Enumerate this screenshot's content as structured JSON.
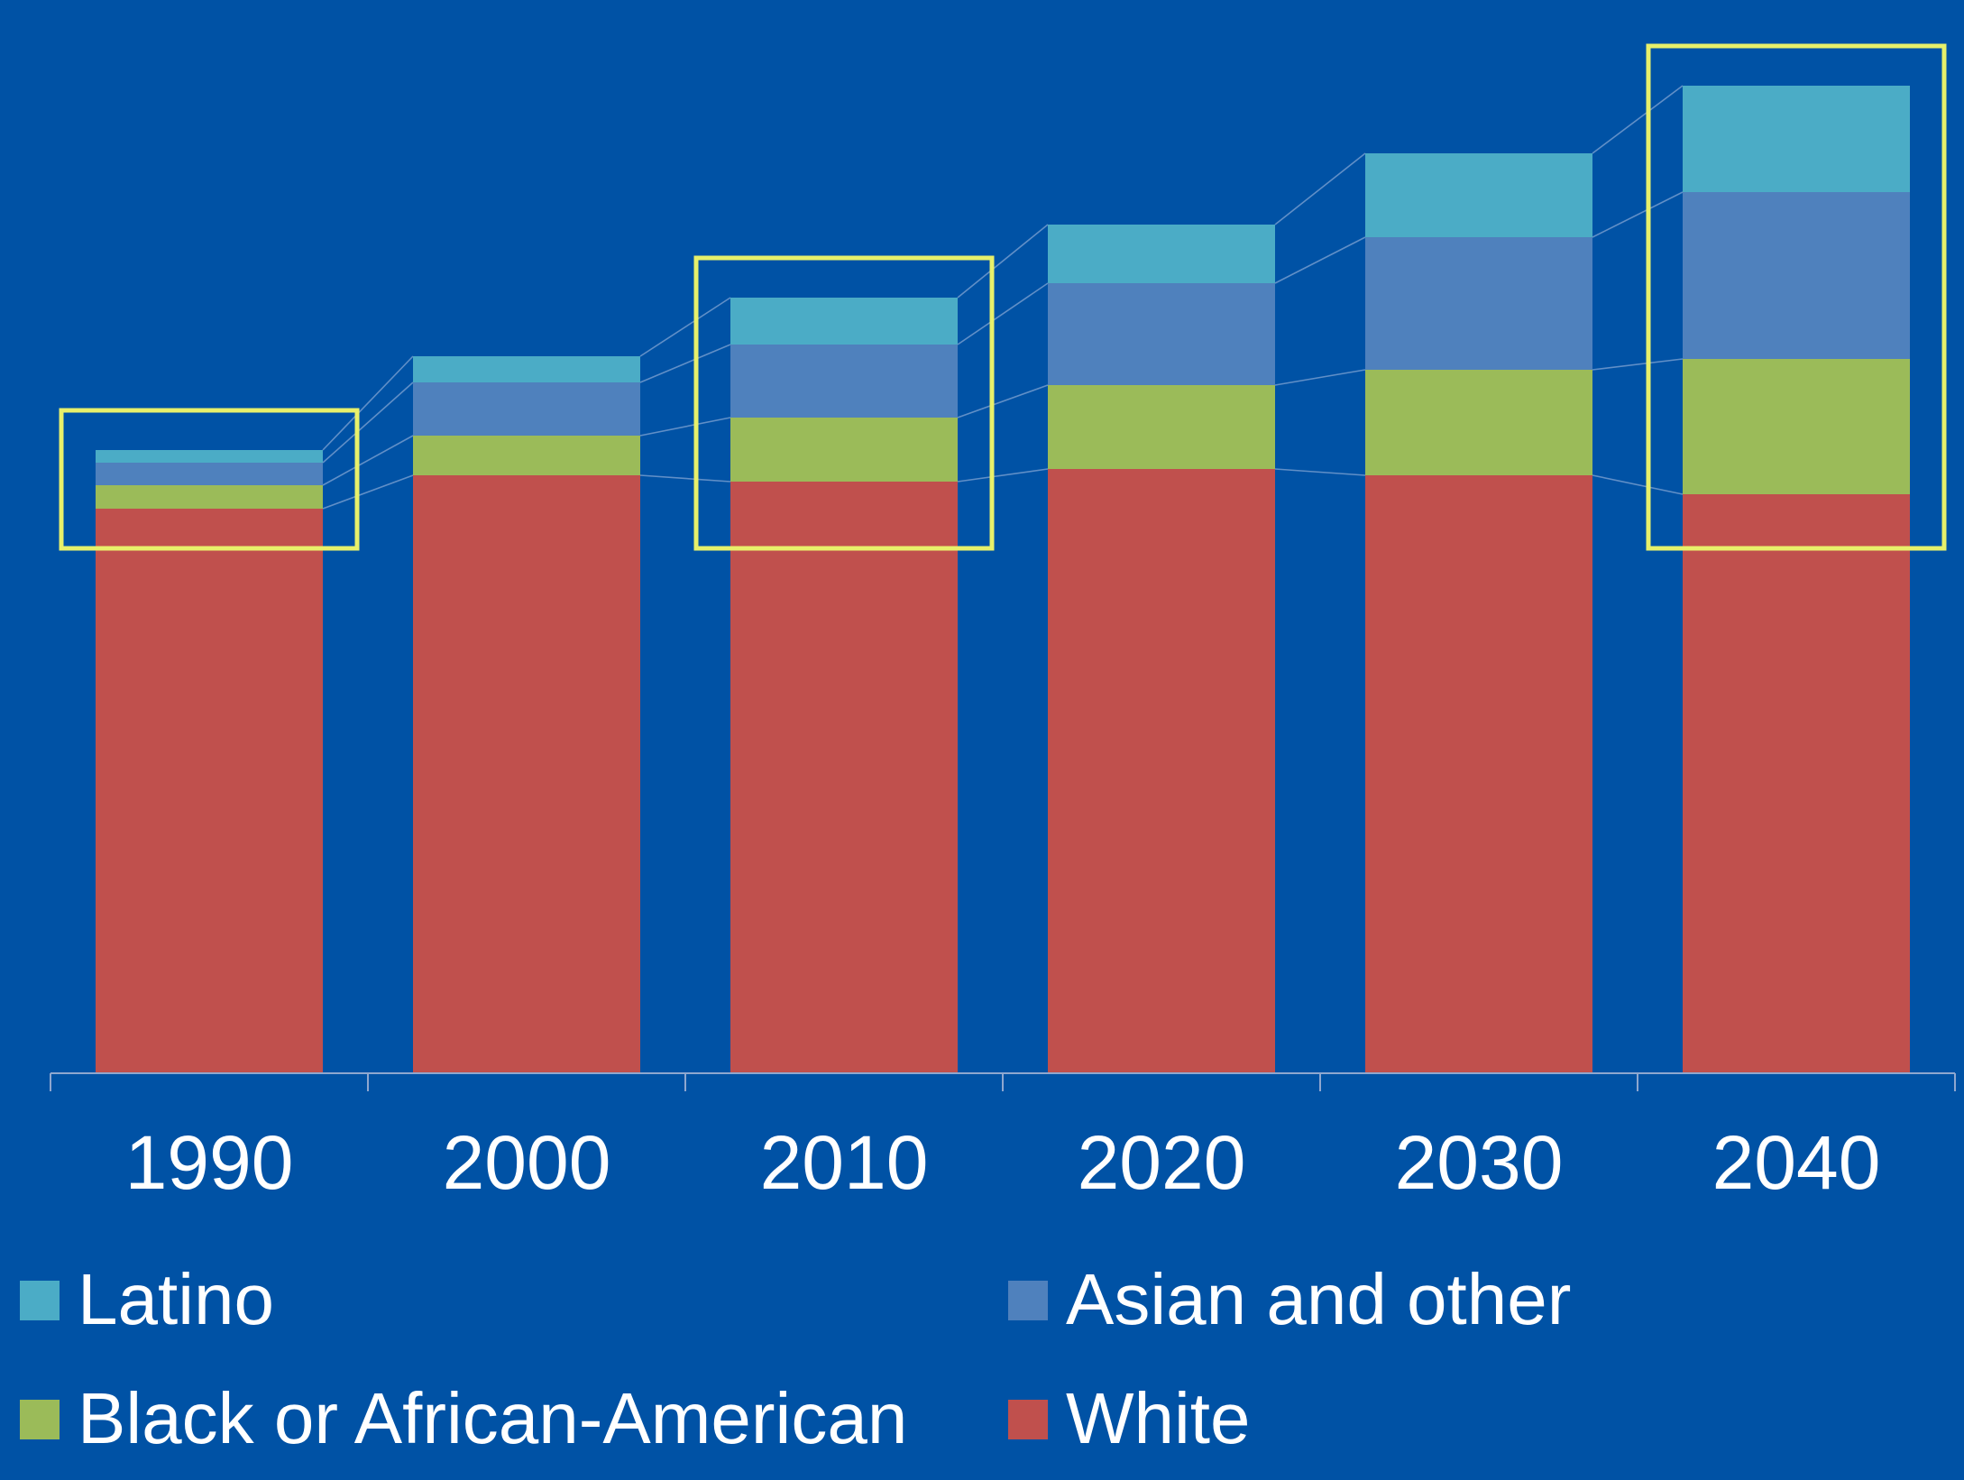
{
  "colors": {
    "background": "#0052A5",
    "highlight_box": "#E8F06A",
    "axis": "#8FA7CF",
    "connector": "#8AAAD6",
    "text": "#FFFFFF"
  },
  "chart_data": {
    "type": "bar",
    "stacked": true,
    "title": "",
    "xlabel": "",
    "ylabel": "",
    "categories": [
      "1990",
      "2000",
      "2010",
      "2020",
      "2030",
      "2040"
    ],
    "series": [
      {
        "name": "White",
        "color": "#C0504D",
        "values": [
          626,
          663,
          656,
          670,
          663,
          642
        ]
      },
      {
        "name": "Black or African-American",
        "color": "#9BBB59",
        "values": [
          26,
          44,
          71,
          93,
          117,
          150
        ]
      },
      {
        "name": "Asian and other",
        "color": "#4F81BD",
        "values": [
          25,
          59,
          81,
          113,
          147,
          185
        ]
      },
      {
        "name": "Latino",
        "color": "#4BACC6",
        "values": [
          14,
          29,
          52,
          65,
          93,
          118
        ]
      }
    ],
    "ylim": [
      0,
      1100
    ],
    "grid": false,
    "gridlines": false,
    "series_connectors": true,
    "highlighted_categories": [
      "1990",
      "2010",
      "2040"
    ],
    "legend": {
      "position": "bottom",
      "items": [
        {
          "label": "Latino",
          "color": "#4BACC6"
        },
        {
          "label": "Asian and other",
          "color": "#4F81BD"
        },
        {
          "label": "Black or African-American",
          "color": "#9BBB59"
        },
        {
          "label": "White",
          "color": "#C0504D"
        }
      ]
    }
  }
}
